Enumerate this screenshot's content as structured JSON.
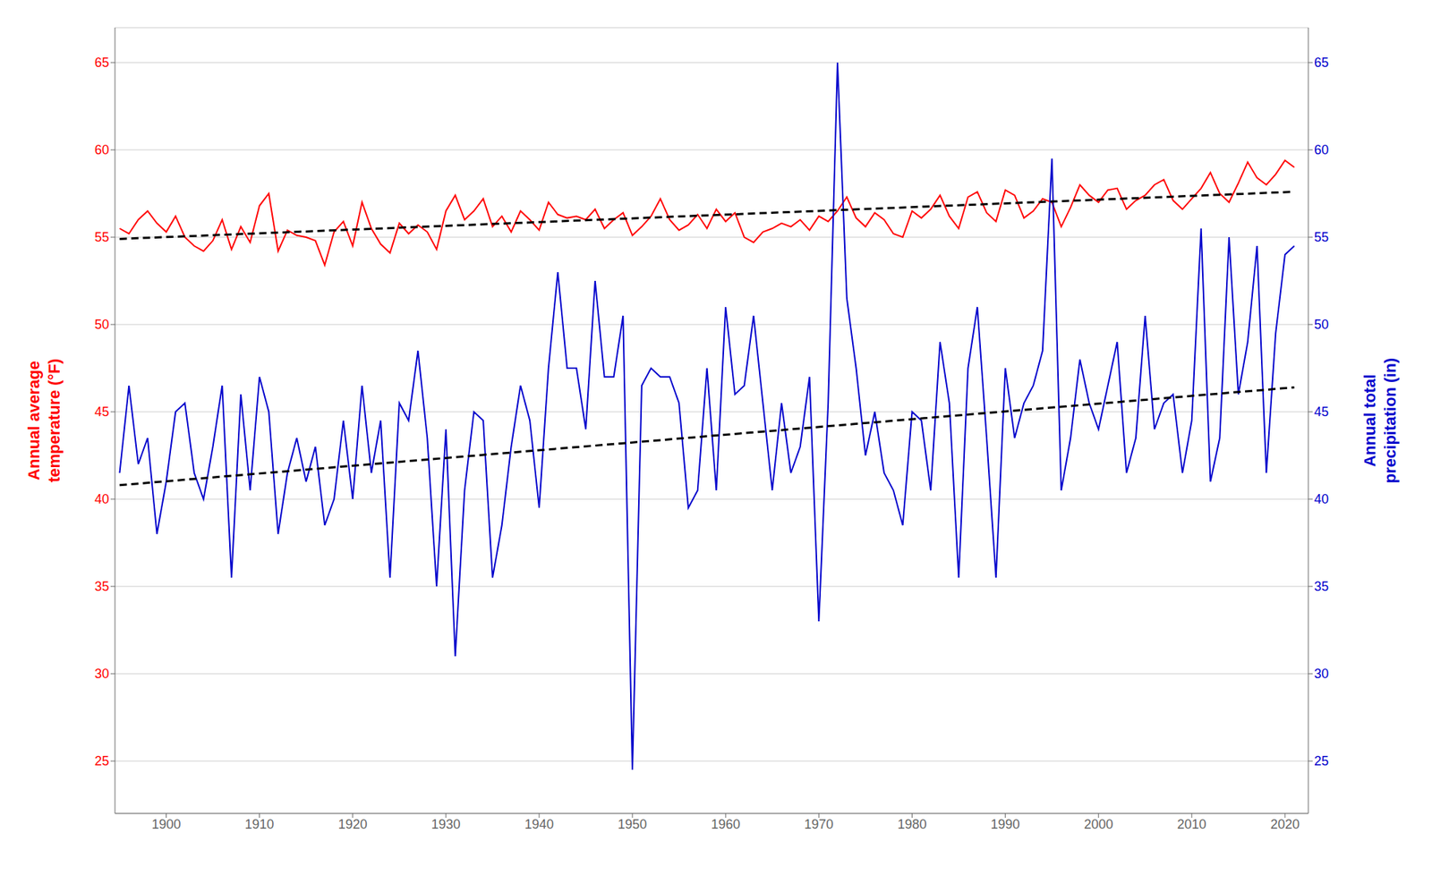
{
  "chart_data": {
    "type": "line",
    "x": [
      1895,
      1896,
      1897,
      1898,
      1899,
      1900,
      1901,
      1902,
      1903,
      1904,
      1905,
      1906,
      1907,
      1908,
      1909,
      1910,
      1911,
      1912,
      1913,
      1914,
      1915,
      1916,
      1917,
      1918,
      1919,
      1920,
      1921,
      1922,
      1923,
      1924,
      1925,
      1926,
      1927,
      1928,
      1929,
      1930,
      1931,
      1932,
      1933,
      1934,
      1935,
      1936,
      1937,
      1938,
      1939,
      1940,
      1941,
      1942,
      1943,
      1944,
      1945,
      1946,
      1947,
      1948,
      1949,
      1950,
      1951,
      1952,
      1953,
      1954,
      1955,
      1956,
      1957,
      1958,
      1959,
      1960,
      1961,
      1962,
      1963,
      1964,
      1965,
      1966,
      1967,
      1968,
      1969,
      1970,
      1971,
      1972,
      1973,
      1974,
      1975,
      1976,
      1977,
      1978,
      1979,
      1980,
      1981,
      1982,
      1983,
      1984,
      1985,
      1986,
      1987,
      1988,
      1989,
      1990,
      1991,
      1992,
      1993,
      1994,
      1995,
      1996,
      1997,
      1998,
      1999,
      2000,
      2001,
      2002,
      2003,
      2004,
      2005,
      2006,
      2007,
      2008,
      2009,
      2010,
      2011,
      2012,
      2013,
      2014,
      2015,
      2016,
      2017,
      2018,
      2019,
      2020,
      2021
    ],
    "xlim": [
      1894.5,
      2022.5
    ],
    "xticks": [
      1900,
      1910,
      1920,
      1930,
      1940,
      1950,
      1960,
      1970,
      1980,
      1990,
      2000,
      2010,
      2020
    ],
    "ylim": [
      22,
      67
    ],
    "yticks": [
      25,
      30,
      35,
      40,
      45,
      50,
      55,
      60,
      65
    ],
    "y2lim": [
      22,
      67
    ],
    "y2ticks": [
      25,
      30,
      35,
      40,
      45,
      50,
      55,
      60,
      65
    ],
    "ylabel": "Annual average\ntemperature (°F)",
    "y2label": "Annual total\nprecipitation (in)",
    "grid": "y",
    "series": [
      {
        "color": "#ff0000",
        "values": [
          55.5,
          55.2,
          56.0,
          56.5,
          55.8,
          55.3,
          56.2,
          55.0,
          54.5,
          54.2,
          54.8,
          56.0,
          54.3,
          55.6,
          54.7,
          56.8,
          57.5,
          54.2,
          55.4,
          55.1,
          55.0,
          54.8,
          53.4,
          55.3,
          55.9,
          54.5,
          57.0,
          55.5,
          54.6,
          54.1,
          55.8,
          55.2,
          55.7,
          55.3,
          54.3,
          56.5,
          57.4,
          56.0,
          56.5,
          57.2,
          55.6,
          56.2,
          55.3,
          56.5,
          56.0,
          55.4,
          57.0,
          56.3,
          56.1,
          56.2,
          56.0,
          56.6,
          55.5,
          56.0,
          56.4,
          55.1,
          55.6,
          56.2,
          57.2,
          56.0,
          55.4,
          55.7,
          56.3,
          55.5,
          56.6,
          55.9,
          56.4,
          55.0,
          54.7,
          55.3,
          55.5,
          55.8,
          55.6,
          56.0,
          55.4,
          56.2,
          55.9,
          56.5,
          57.3,
          56.1,
          55.6,
          56.4,
          56.0,
          55.2,
          55.0,
          56.5,
          56.1,
          56.6,
          57.4,
          56.2,
          55.5,
          57.3,
          57.6,
          56.4,
          55.9,
          57.7,
          57.4,
          56.1,
          56.5,
          57.2,
          57.0,
          55.6,
          56.7,
          58.0,
          57.4,
          57.0,
          57.7,
          57.8,
          56.6,
          57.1,
          57.4,
          58.0,
          58.3,
          57.1,
          56.6,
          57.2,
          57.8,
          58.7,
          57.5,
          57.0,
          58.1,
          59.3,
          58.4,
          58.0,
          58.6,
          59.4,
          59.0
        ]
      },
      {
        "color": "#0000cc",
        "axis": "y2",
        "values": [
          41.5,
          46.5,
          42.0,
          43.5,
          38.0,
          41.0,
          45.0,
          45.5,
          41.5,
          40.0,
          43.0,
          46.5,
          35.5,
          46.0,
          40.5,
          47.0,
          45.0,
          38.0,
          41.5,
          43.5,
          41.0,
          43.0,
          38.5,
          40.0,
          44.5,
          40.0,
          46.5,
          41.5,
          44.5,
          35.5,
          45.5,
          44.5,
          48.5,
          43.5,
          35.0,
          44.0,
          31.0,
          40.5,
          45.0,
          44.5,
          35.5,
          38.5,
          43.0,
          46.5,
          44.5,
          39.5,
          47.5,
          53.0,
          47.5,
          47.5,
          44.0,
          52.5,
          47.0,
          47.0,
          50.5,
          24.5,
          46.5,
          47.5,
          47.0,
          47.0,
          45.5,
          39.5,
          40.5,
          47.5,
          40.5,
          51.0,
          46.0,
          46.5,
          50.5,
          45.5,
          40.5,
          45.5,
          41.5,
          43.0,
          47.0,
          33.0,
          45.5,
          65.0,
          51.5,
          47.5,
          42.5,
          45.0,
          41.5,
          40.5,
          38.5,
          45.0,
          44.5,
          40.5,
          49.0,
          45.5,
          35.5,
          47.5,
          51.0,
          43.5,
          35.5,
          47.5,
          43.5,
          45.5,
          46.5,
          48.5,
          59.5,
          40.5,
          43.5,
          48.0,
          45.5,
          44.0,
          46.5,
          49.0,
          41.5,
          43.5,
          50.5,
          44.0,
          45.5,
          46.0,
          41.5,
          44.5,
          55.5,
          41.0,
          43.5,
          55.0,
          46.0,
          49.0,
          54.5,
          41.5,
          49.5,
          54.0,
          54.5
        ]
      },
      {
        "color": "#000000",
        "line_style": "dashed",
        "x": [
          1895,
          2021
        ],
        "values": [
          54.9,
          57.6
        ]
      },
      {
        "color": "#000000",
        "line_style": "dashed",
        "axis": "y2",
        "x": [
          1895,
          2021
        ],
        "values": [
          40.8,
          46.4
        ]
      }
    ]
  }
}
